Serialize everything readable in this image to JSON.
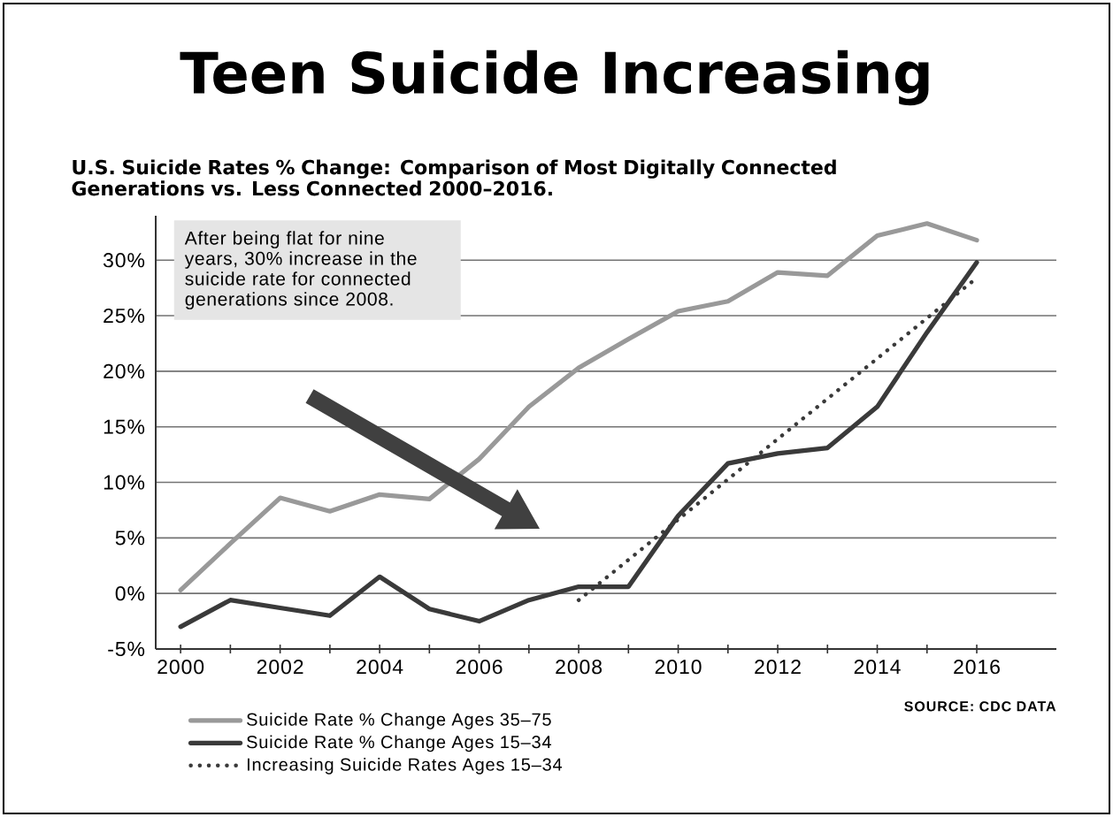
{
  "chart_data": {
    "type": "line",
    "title": "Teen Suicide Increasing",
    "subtitle": "U.S. Suicide Rates % Change: Comparison of Most Digitally Connected Generations vs. Less Connected 2000–2016.",
    "annotations": [
      "After being flat for nine years, 30% increase in the suicide rate for connected generations since 2008.",
      "**SOURCE**: CDC DATA"
    ],
    "series": [
      {
        "name": "Suicide Rate % Change Ages 35–75",
        "color": "#999999",
        "x": [
          2000,
          2001,
          2002,
          2003,
          2004,
          2005,
          2006,
          2007,
          2008,
          2009,
          2010,
          2011,
          2012,
          2013,
          2014,
          2015,
          2016
        ],
        "values": [
          0.3,
          4.5,
          8.6,
          7.4,
          8.9,
          8.5,
          12.1,
          16.8,
          20.3,
          22.9,
          25.4,
          26.3,
          28.9,
          28.6,
          32.2,
          33.3,
          31.8
        ]
      },
      {
        "name": "Suicide Rate % Change Ages 15–34",
        "color": "#3a3a3a",
        "x": [
          2000,
          2001,
          2002,
          2003,
          2004,
          2005,
          2006,
          2007,
          2008,
          2009,
          2010,
          2011,
          2012,
          2013,
          2014,
          2015,
          2016
        ],
        "values": [
          -3.0,
          -0.6,
          -1.3,
          -2.0,
          1.5,
          -1.4,
          -2.5,
          -0.6,
          0.6,
          0.6,
          7.0,
          11.7,
          12.6,
          13.1,
          16.8,
          23.5,
          29.8
        ]
      },
      {
        "name": "Increasing Suicide Rates Ages 15–34",
        "color": "#3a3a3a",
        "line_style": "dotted",
        "x": [
          2008,
          2016
        ],
        "values": [
          -0.6,
          28.4
        ]
      }
    ],
    "xlim": [
      1999.5,
      2017.6
    ],
    "ylim": [
      -5,
      34
    ],
    "xticks": [
      2000,
      {
        "value": 2001,
        "label": null
      },
      2002,
      {
        "value": 2003,
        "label": null
      },
      2004,
      {
        "value": 2005,
        "label": null
      },
      2006,
      {
        "value": 2007,
        "label": null
      },
      2008,
      {
        "value": 2009,
        "label": null
      },
      2010,
      {
        "value": 2011,
        "label": null
      },
      2012,
      {
        "value": 2013,
        "label": null
      },
      2014,
      {
        "value": 2015,
        "label": null
      },
      2016
    ],
    "yticks": [
      {
        "value": -5,
        "label": "-5%"
      },
      {
        "value": 0,
        "label": "0%"
      },
      {
        "value": 5,
        "label": "5%"
      },
      {
        "value": 10,
        "label": "10%"
      },
      {
        "value": 15,
        "label": "15%"
      },
      {
        "value": 20,
        "label": "20%"
      },
      {
        "value": 25,
        "label": "25%"
      },
      {
        "value": 30,
        "label": "30%"
      }
    ],
    "grid": "y",
    "legend": "bottom"
  }
}
